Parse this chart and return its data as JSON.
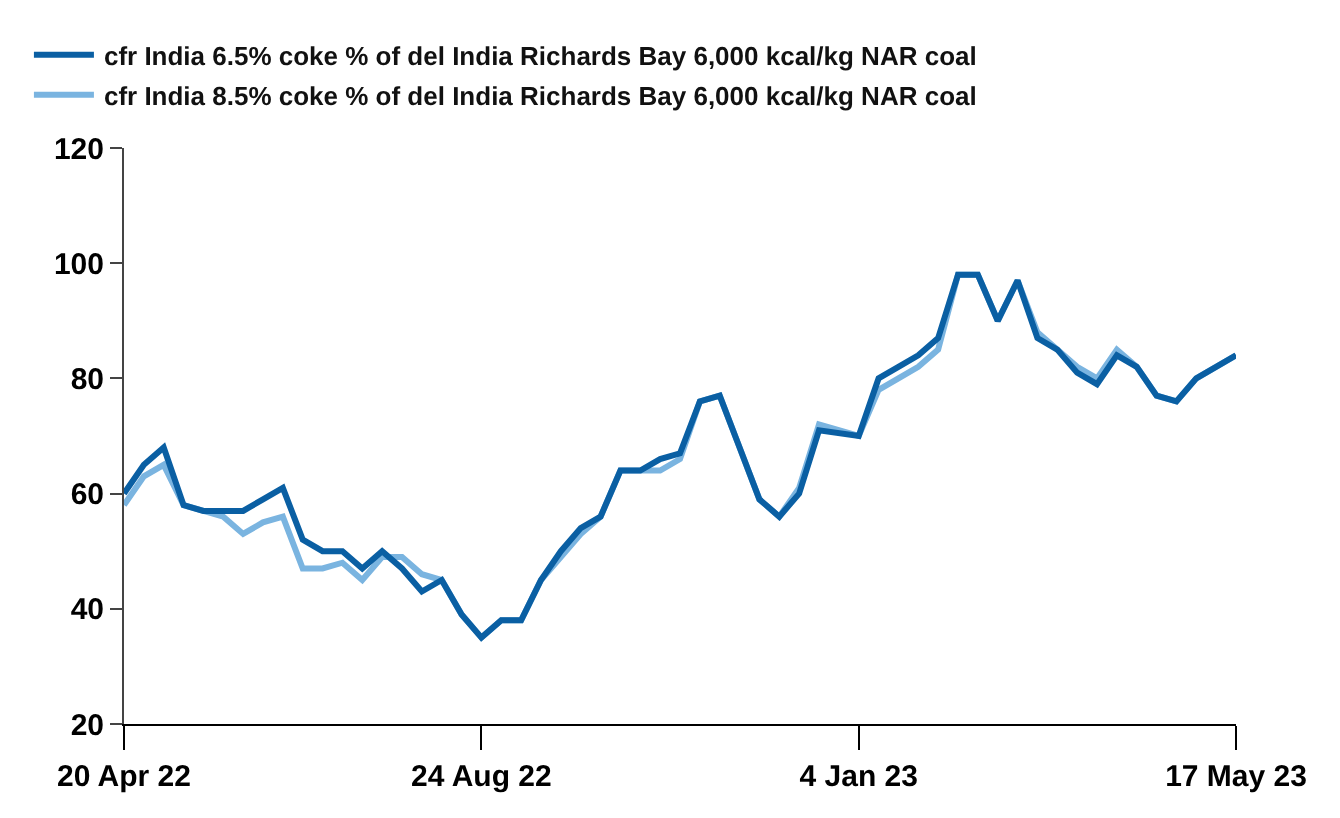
{
  "chart_data": {
    "type": "line",
    "x": [
      "2022-04-20",
      "2022-04-27",
      "2022-05-04",
      "2022-05-11",
      "2022-05-18",
      "2022-05-25",
      "2022-06-01",
      "2022-06-08",
      "2022-06-15",
      "2022-06-22",
      "2022-06-29",
      "2022-07-06",
      "2022-07-13",
      "2022-07-20",
      "2022-07-27",
      "2022-08-03",
      "2022-08-10",
      "2022-08-17",
      "2022-08-24",
      "2022-08-31",
      "2022-09-07",
      "2022-09-14",
      "2022-09-21",
      "2022-09-28",
      "2022-10-05",
      "2022-10-12",
      "2022-10-19",
      "2022-10-26",
      "2022-11-02",
      "2022-11-09",
      "2022-11-16",
      "2022-11-23",
      "2022-11-30",
      "2022-12-07",
      "2022-12-14",
      "2022-12-21",
      "2023-01-04",
      "2023-01-11",
      "2023-01-18",
      "2023-01-25",
      "2023-02-01",
      "2023-02-08",
      "2023-02-15",
      "2023-02-22",
      "2023-03-01",
      "2023-03-08",
      "2023-03-15",
      "2023-03-22",
      "2023-03-29",
      "2023-04-05",
      "2023-04-12",
      "2023-04-19",
      "2023-04-26",
      "2023-05-03",
      "2023-05-17"
    ],
    "series": [
      {
        "name": "cfr India 6.5% coke % of del India Richards Bay 6,000 kcal/kg NAR coal",
        "color": "#0a5fa3",
        "values": [
          60,
          65,
          68,
          58,
          57,
          57,
          57,
          59,
          61,
          52,
          50,
          50,
          47,
          50,
          47,
          43,
          45,
          39,
          35,
          38,
          38,
          45,
          50,
          54,
          56,
          64,
          64,
          66,
          67,
          76,
          77,
          68,
          59,
          56,
          60,
          71,
          70,
          80,
          82,
          84,
          87,
          98,
          98,
          90,
          97,
          87,
          85,
          81,
          79,
          84,
          82,
          77,
          76,
          80,
          84
        ]
      },
      {
        "name": "cfr India 8.5% coke % of del India Richards Bay 6,000 kcal/kg NAR coal",
        "color": "#7ab4e0",
        "values": [
          58,
          63,
          65,
          58,
          57,
          56,
          53,
          55,
          56,
          47,
          47,
          48,
          45,
          49,
          49,
          46,
          45,
          39,
          35,
          38,
          38,
          45,
          49,
          53,
          56,
          64,
          64,
          64,
          66,
          76,
          77,
          68,
          59,
          56,
          61,
          72,
          70,
          78,
          80,
          82,
          85,
          98,
          98,
          90,
          97,
          88,
          85,
          82,
          80,
          85,
          82,
          77,
          76,
          80,
          84
        ]
      }
    ],
    "xlim": [
      "2022-04-20",
      "2023-05-17"
    ],
    "xticks": [
      {
        "value": "2022-04-20",
        "label": "20 Apr 22"
      },
      {
        "value": "2022-08-24",
        "label": "24 Aug 22"
      },
      {
        "value": "2023-01-04",
        "label": "4 Jan 23"
      },
      {
        "value": "2023-05-17",
        "label": "17 May 23"
      }
    ],
    "ylim": [
      20,
      120
    ],
    "yticks": [
      20,
      40,
      60,
      80,
      100,
      120
    ],
    "legend": "top left",
    "marker": "none",
    "line_style": "solid"
  }
}
